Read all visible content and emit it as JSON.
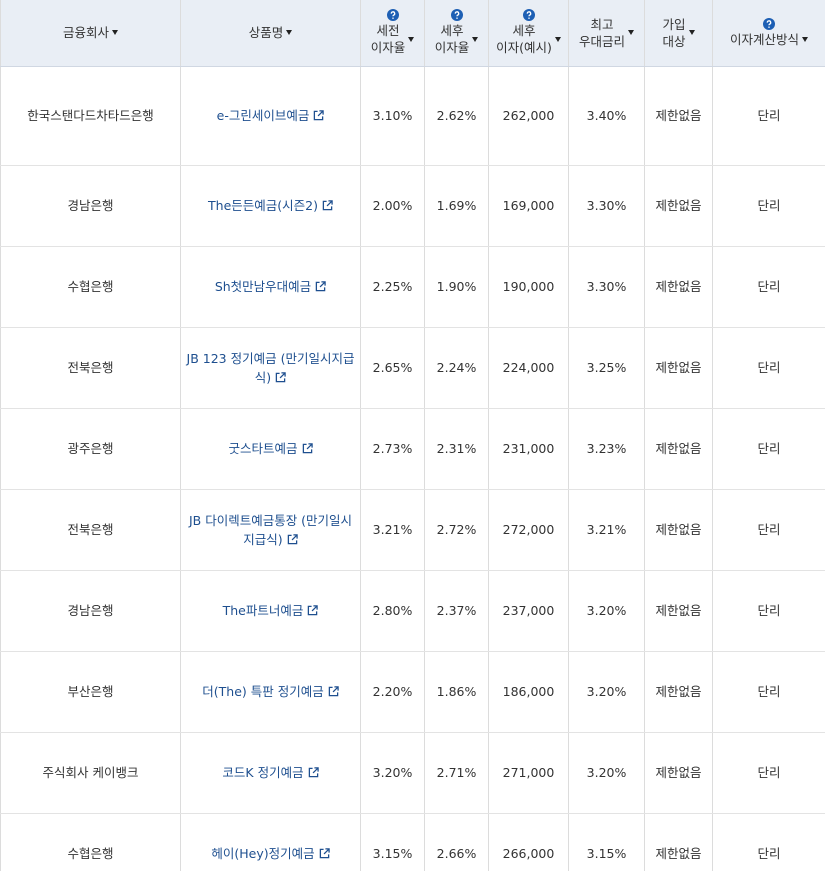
{
  "table": {
    "header": [
      {
        "lines": [
          "금융회사"
        ]
      },
      {
        "lines": [
          "상품명"
        ]
      },
      {
        "lines": [
          "세전",
          "이자율"
        ],
        "help": true
      },
      {
        "lines": [
          "세후",
          "이자율"
        ],
        "help": true
      },
      {
        "lines": [
          "세후",
          "이자(예시)"
        ],
        "help": true
      },
      {
        "lines": [
          "최고",
          "우대금리"
        ]
      },
      {
        "lines": [
          "가입",
          "대상"
        ]
      },
      {
        "lines": [
          "이자계산방식"
        ],
        "help": true
      }
    ],
    "rows": [
      [
        "한국스탠다드차타드은행",
        "e-그린세이브예금",
        "3.10%",
        "2.62%",
        "262,000",
        "3.40%",
        "제한없음",
        "단리"
      ],
      [
        "경남은행",
        "The든든예금(시즌2)",
        "2.00%",
        "1.69%",
        "169,000",
        "3.30%",
        "제한없음",
        "단리"
      ],
      [
        "수협은행",
        "Sh첫만남우대예금",
        "2.25%",
        "1.90%",
        "190,000",
        "3.30%",
        "제한없음",
        "단리"
      ],
      [
        "전북은행",
        "JB 123 정기예금 (만기일시지급식)",
        "2.65%",
        "2.24%",
        "224,000",
        "3.25%",
        "제한없음",
        "단리"
      ],
      [
        "광주은행",
        "굿스타트예금",
        "2.73%",
        "2.31%",
        "231,000",
        "3.23%",
        "제한없음",
        "단리"
      ],
      [
        "전북은행",
        "JB 다이렉트예금통장 (만기일시지급식)",
        "3.21%",
        "2.72%",
        "272,000",
        "3.21%",
        "제한없음",
        "단리"
      ],
      [
        "경남은행",
        "The파트너예금",
        "2.80%",
        "2.37%",
        "237,000",
        "3.20%",
        "제한없음",
        "단리"
      ],
      [
        "부산은행",
        "더(The) 특판 정기예금",
        "2.20%",
        "1.86%",
        "186,000",
        "3.20%",
        "제한없음",
        "단리"
      ],
      [
        "주식회사 케이뱅크",
        "코드K 정기예금",
        "3.20%",
        "2.71%",
        "271,000",
        "3.20%",
        "제한없음",
        "단리"
      ],
      [
        "수협은행",
        "헤이(Hey)정기예금",
        "3.15%",
        "2.66%",
        "266,000",
        "3.15%",
        "제한없음",
        "단리"
      ]
    ]
  }
}
